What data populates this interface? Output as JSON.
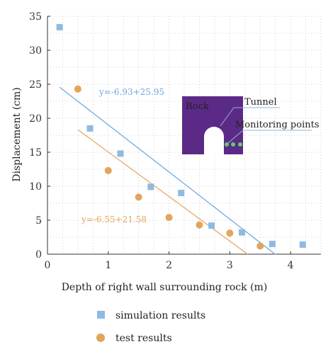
{
  "chart_data": {
    "type": "scatter",
    "xlabel": "Depth of right wall surrounding rock (m)",
    "ylabel": "Displacement (cm)",
    "xlim": [
      0,
      4.5
    ],
    "ylim": [
      0,
      35
    ],
    "xticks": [
      0,
      1,
      2,
      3,
      4
    ],
    "yticks": [
      0,
      5,
      10,
      15,
      20,
      25,
      30,
      35
    ],
    "grid": "dotted",
    "legend_position": "bottom",
    "series": [
      {
        "name": "simulation results",
        "marker": "square",
        "color": "#8fbbe2",
        "x": [
          0.2,
          0.7,
          1.2,
          1.7,
          2.2,
          2.7,
          3.2,
          3.7,
          4.2
        ],
        "y": [
          33.4,
          18.5,
          14.8,
          9.9,
          9.0,
          4.2,
          3.2,
          1.5,
          1.4
        ]
      },
      {
        "name": "test results",
        "marker": "circle",
        "color": "#e2a55a",
        "x": [
          0.5,
          1.0,
          1.5,
          2.0,
          2.5,
          3.0,
          3.5
        ],
        "y": [
          24.3,
          12.3,
          8.4,
          5.4,
          4.3,
          3.1,
          1.2
        ]
      }
    ],
    "fit_lines": [
      {
        "series": "simulation results",
        "label": "y=-6.93+25.95",
        "color": "#6aa6dd",
        "slope": -6.93,
        "intercept": 25.95,
        "x_start": 0.2,
        "x_end": 3.75
      },
      {
        "series": "test results",
        "label": "y=-6.55+21.58",
        "color": "#e2a55a",
        "slope": -6.55,
        "intercept": 21.58,
        "x_start": 0.5,
        "x_end": 3.3
      }
    ],
    "inset": {
      "rock_label": "Rock",
      "tunnel_label": "Tunnel",
      "monitoring_label": "Monitoring points",
      "background_color": "#5b2a86",
      "label_color": "#e8c45a"
    }
  }
}
